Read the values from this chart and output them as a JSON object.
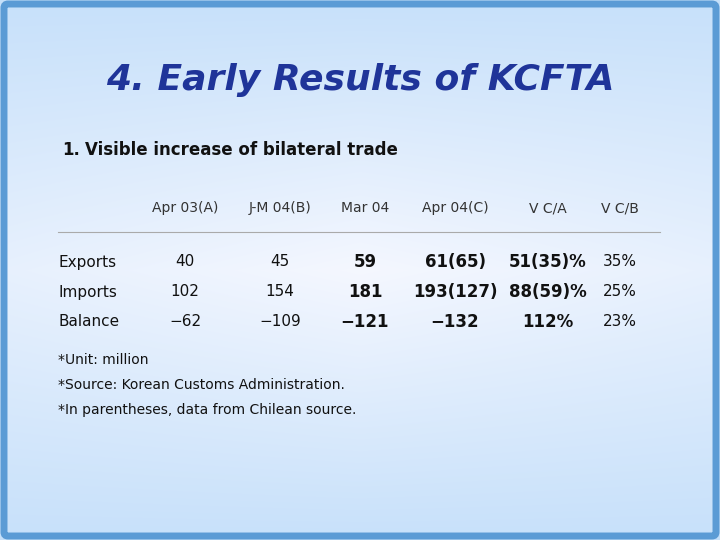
{
  "title": "4. Early Results of KCFTA",
  "subtitle_num": "1.",
  "subtitle_text": "  Visible increase of bilateral trade",
  "col_headers": [
    "Apr 03(A)",
    "J-M 04(B)",
    "Mar 04",
    "Apr 04(C)",
    "V C/A",
    "V C/B"
  ],
  "row_labels": [
    "Exports",
    "Imports",
    "Balance"
  ],
  "rows": [
    [
      "40",
      "45",
      "59",
      "61(65)",
      "51(35)%",
      "35%"
    ],
    [
      "102",
      "154",
      "181",
      "193(127)",
      "88(59)%",
      "25%"
    ],
    [
      "-62",
      "-109",
      "-121",
      "-132",
      "112%",
      "23%"
    ]
  ],
  "bold_cols": [
    2,
    3,
    4
  ],
  "footnotes": [
    "*Unit: million",
    "*Source: Korean Customs Administration.",
    "*In parentheses, data from Chilean source."
  ],
  "bg_color_outer": "#5b9bd5",
  "title_color": "#1f3499",
  "subtitle_color": "#111111",
  "text_color": "#111111",
  "header_color": "#333333"
}
